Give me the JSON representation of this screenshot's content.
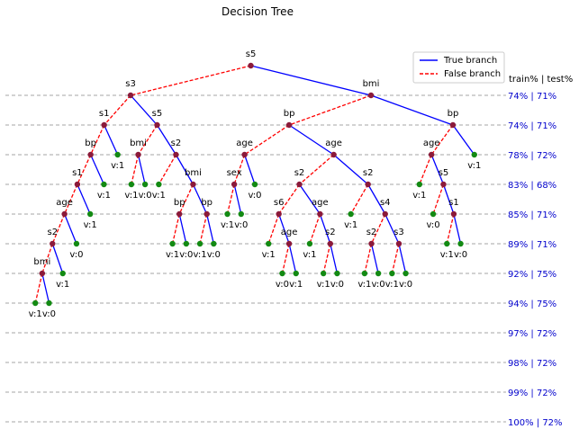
{
  "title": "Decision Tree",
  "legend": {
    "true_label": "True branch",
    "false_label": "False branch",
    "true_color": "#0000ff",
    "false_color": "#ff0000"
  },
  "colors": {
    "split_node": "#8b1a3a",
    "leaf_node": "#138a13",
    "depth_label": "#0000cc",
    "grid": "#888888"
  },
  "levels_header": "train% | test%",
  "levels": [
    "74% | 71%",
    "74% | 71%",
    "78% | 72%",
    "83% | 68%",
    "85% | 71%",
    "89% | 71%",
    "92% | 75%",
    "94% | 75%",
    "97% | 72%",
    "98% | 72%",
    "99% | 72%",
    "100% | 72%"
  ],
  "tree": {
    "label": "s5",
    "t": {
      "label": "bmi",
      "t": {
        "label": "bp",
        "t": {
          "label": "v:1"
        },
        "f": {
          "label": "age",
          "t": {
            "label": "s5",
            "t": {
              "label": "s1",
              "t": {
                "label": "v:0"
              },
              "f": {
                "label": "v:1"
              }
            },
            "f": {
              "label": "v:0"
            }
          },
          "f": {
            "label": "v:1"
          }
        }
      },
      "f": {
        "label": "bp",
        "t": {
          "label": "age",
          "t": {
            "label": "s2",
            "t": {
              "label": "s4",
              "t": {
                "label": "s3",
                "t": {
                  "label": "v:0"
                },
                "f": {
                  "label": "v:1"
                }
              },
              "f": {
                "label": "s2",
                "t": {
                  "label": "v:0"
                },
                "f": {
                  "label": "v:1"
                }
              }
            },
            "f": {
              "label": "v:1"
            }
          },
          "f": {
            "label": "s2",
            "t": {
              "label": "age",
              "t": {
                "label": "s2",
                "t": {
                  "label": "v:0"
                },
                "f": {
                  "label": "v:1"
                }
              },
              "f": {
                "label": "v:1"
              }
            },
            "f": {
              "label": "s6",
              "t": {
                "label": "age",
                "t": {
                  "label": "v:1"
                },
                "f": {
                  "label": "v:0"
                }
              },
              "f": {
                "label": "v:1"
              }
            }
          }
        },
        "f": {
          "label": "age",
          "t": {
            "label": "v:0"
          },
          "f": {
            "label": "sex",
            "t": {
              "label": "v:0"
            },
            "f": {
              "label": "v:1"
            }
          }
        }
      }
    },
    "f": {
      "label": "s3",
      "t": {
        "label": "s5",
        "t": {
          "label": "s2",
          "t": {
            "label": "bmi",
            "t": {
              "label": "bp",
              "t": {
                "label": "v:0"
              },
              "f": {
                "label": "v:1"
              }
            },
            "f": {
              "label": "bp",
              "t": {
                "label": "v:0"
              },
              "f": {
                "label": "v:1"
              }
            }
          },
          "f": {
            "label": "v:1"
          }
        },
        "f": {
          "label": "bmi",
          "t": {
            "label": "v:0"
          },
          "f": {
            "label": "v:1"
          }
        }
      },
      "f": {
        "label": "s1",
        "t": {
          "label": "v:1"
        },
        "f": {
          "label": "bp",
          "t": {
            "label": "v:1"
          },
          "f": {
            "label": "s1",
            "t": {
              "label": "v:1"
            },
            "f": {
              "label": "age",
              "t": {
                "label": "v:0"
              },
              "f": {
                "label": "s2",
                "t": {
                  "label": "v:1"
                },
                "f": {
                  "label": "bmi",
                  "t": {
                    "label": "v:0"
                  },
                  "f": {
                    "label": "v:1"
                  }
                }
              }
            }
          }
        }
      }
    }
  }
}
